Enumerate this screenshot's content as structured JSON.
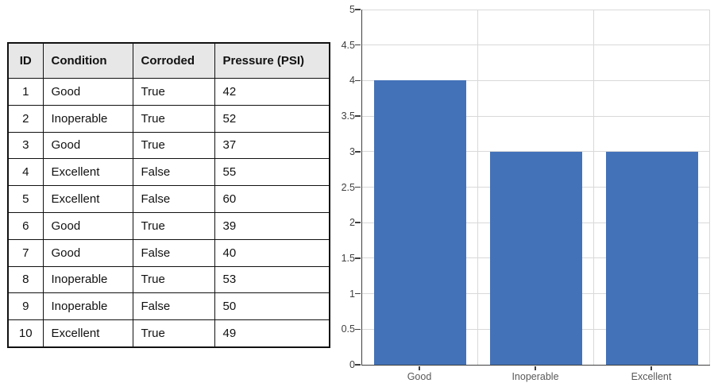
{
  "table": {
    "headers": [
      "ID",
      "Condition",
      "Corroded",
      "Pressure (PSI)"
    ],
    "rows": [
      [
        "1",
        "Good",
        "True",
        "42"
      ],
      [
        "2",
        "Inoperable",
        "True",
        "52"
      ],
      [
        "3",
        "Good",
        "True",
        "37"
      ],
      [
        "4",
        "Excellent",
        "False",
        "55"
      ],
      [
        "5",
        "Excellent",
        "False",
        "60"
      ],
      [
        "6",
        "Good",
        "True",
        "39"
      ],
      [
        "7",
        "Good",
        "False",
        "40"
      ],
      [
        "8",
        "Inoperable",
        "True",
        "53"
      ],
      [
        "9",
        "Inoperable",
        "False",
        "50"
      ],
      [
        "10",
        "Excellent",
        "True",
        "49"
      ]
    ]
  },
  "chart_data": {
    "type": "bar",
    "title": "",
    "categories": [
      "Good",
      "Inoperable",
      "Excellent"
    ],
    "values": [
      4,
      3,
      3
    ],
    "xlabel": "",
    "ylabel": "",
    "ylim": [
      0,
      5
    ],
    "ytick_step": 0.5,
    "ytick_labels": [
      "0",
      "0.5",
      "1",
      "1.5",
      "2",
      "2.5",
      "3",
      "3.5",
      "4",
      "4.5",
      "5"
    ],
    "grid": true,
    "legend": false,
    "bar_color": "#4372b8",
    "gridline_color": "#d9d9d9",
    "axis_color": "#3f3f3f",
    "ytick_label_color": "#404040",
    "xtick_label_color": "#595959"
  }
}
